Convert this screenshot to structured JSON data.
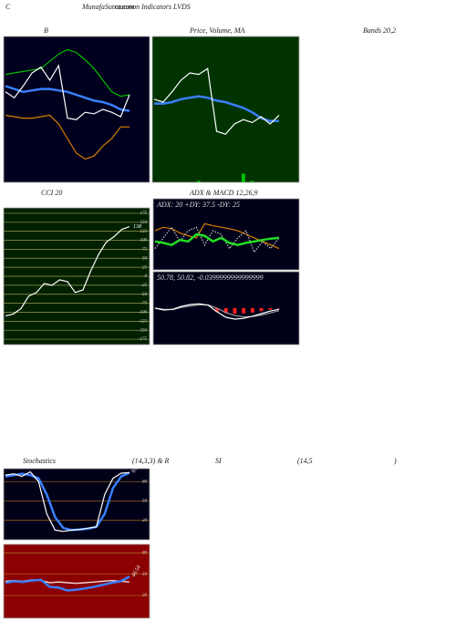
{
  "header": {
    "c": "C",
    "site": "MunafaSutra.com",
    "subtitle": "common Indicators LVDS"
  },
  "captions": [
    "B",
    "Price, Volume, MA",
    "Bands 20,2",
    "CCI 20",
    "ADX  & MACD 12,26,9",
    "Stochastics",
    "(14,3,3) & R",
    "SI",
    "(14,5",
    ")"
  ],
  "watermark": "MunafaSutra.com",
  "chart_data": [
    {
      "type": "line",
      "ylim": [
        0,
        100
      ],
      "series": [
        {
          "color": "#00c000",
          "values": [
            74,
            75,
            76,
            77,
            78,
            83,
            88,
            91,
            89,
            84,
            78,
            70,
            62,
            59,
            60
          ]
        },
        {
          "color": "#d98000",
          "values": [
            46,
            45,
            44,
            44,
            45,
            46,
            40,
            30,
            20,
            16,
            18,
            25,
            30,
            38,
            38
          ]
        },
        {
          "color": "#3a7fff",
          "style": "thick",
          "values": [
            66,
            64,
            62,
            63,
            64,
            64,
            63,
            62,
            60,
            58,
            56,
            55,
            53,
            50,
            49
          ]
        },
        {
          "color": "#ffffff",
          "values": [
            62,
            58,
            66,
            75,
            79,
            70,
            80,
            44,
            43,
            48,
            47,
            50,
            48,
            45,
            60
          ]
        }
      ]
    },
    {
      "type": "line",
      "ylim": [
        0,
        100
      ],
      "series": [
        {
          "color": "#00c000",
          "style": "bar",
          "values": [
            0,
            0,
            0,
            0,
            0,
            1,
            0,
            0,
            0,
            0,
            6,
            1,
            0,
            0,
            0
          ]
        },
        {
          "color": "#3a7fff",
          "style": "thick",
          "values": [
            54,
            54,
            55,
            57,
            58,
            59,
            58,
            56,
            55,
            53,
            51,
            48,
            44,
            42,
            42
          ]
        },
        {
          "color": "#ffffff",
          "values": [
            57,
            55,
            62,
            70,
            75,
            74,
            78,
            35,
            33,
            40,
            43,
            41,
            45,
            40,
            46
          ]
        }
      ]
    },
    {
      "type": "line",
      "ylim": [
        -190,
        190
      ],
      "grid": true,
      "yticks": [
        175,
        150,
        125,
        100,
        75,
        50,
        25,
        0,
        -25,
        -50,
        -75,
        -100,
        -125,
        -150,
        -175
      ],
      "series": [
        {
          "color": "#ffffff",
          "values": [
            -110,
            -105,
            -90,
            -55,
            -45,
            -20,
            -25,
            -10,
            -15,
            -45,
            -38,
            15,
            60,
            95,
            110,
            130,
            138
          ]
        }
      ]
    },
    {
      "type": "line",
      "ylim": [
        0,
        100
      ],
      "caption": "ADX: 20  +DY: 37.5 -DY: 25",
      "series": [
        {
          "color": "#d98000",
          "values": [
            55,
            60,
            58,
            52,
            48,
            45,
            65,
            62,
            60,
            58,
            55,
            50,
            45,
            40,
            35,
            30
          ]
        },
        {
          "color": "#cccccc",
          "style": "dotted",
          "values": [
            30,
            45,
            60,
            40,
            55,
            60,
            35,
            55,
            50,
            30,
            45,
            55,
            25,
            40,
            30,
            45
          ]
        },
        {
          "color": "#22dd22",
          "style": "thick",
          "values": [
            40,
            38,
            35,
            42,
            40,
            50,
            48,
            40,
            45,
            38,
            35,
            38,
            40,
            42,
            44,
            45
          ]
        }
      ]
    },
    {
      "type": "line",
      "ylim": [
        -100,
        100
      ],
      "caption": "50.78, 50.82, -0.0399999999999999",
      "series": [
        {
          "color": "#ff2020",
          "style": "bar",
          "values": [
            0,
            0,
            0,
            0,
            0,
            0,
            0,
            -10,
            -14,
            -15,
            -14,
            -12,
            -8,
            -4,
            -1
          ]
        },
        {
          "color": "#999999",
          "values": [
            0,
            -3,
            -4,
            2,
            6,
            9,
            9,
            0,
            -12,
            -20,
            -24,
            -23,
            -19,
            -13,
            -7
          ]
        },
        {
          "color": "#ffffff",
          "values": [
            0,
            -5,
            -3,
            5,
            10,
            12,
            8,
            -10,
            -25,
            -30,
            -28,
            -22,
            -15,
            -8,
            -3
          ]
        }
      ]
    },
    {
      "type": "line",
      "ylim": [
        -10,
        100
      ],
      "grid": true,
      "yticks": [
        80,
        50,
        20
      ],
      "series": [
        {
          "color": "#3a7fff",
          "style": "thick",
          "values": [
            88,
            90,
            92,
            90,
            85,
            60,
            25,
            8,
            5,
            6,
            7,
            10,
            30,
            70,
            88,
            93.69
          ]
        },
        {
          "color": "#ffffff",
          "values": [
            90,
            92,
            88,
            95,
            80,
            30,
            5,
            3,
            5,
            6,
            8,
            10,
            60,
            85,
            93,
            94
          ]
        }
      ]
    },
    {
      "type": "line",
      "ylim": [
        -12,
        92
      ],
      "grid": true,
      "yticks": [
        80,
        50,
        20
      ],
      "series": [
        {
          "color": "#ffffff",
          "values": [
            40,
            41,
            40,
            42,
            41,
            38,
            39,
            38,
            37,
            38,
            39,
            40,
            41,
            40,
            39
          ]
        },
        {
          "color": "#3a7fff",
          "style": "thick",
          "values": [
            38,
            40,
            39,
            41,
            42,
            32,
            31,
            27,
            28,
            30,
            32,
            35,
            38,
            40,
            46.54
          ]
        }
      ]
    }
  ]
}
